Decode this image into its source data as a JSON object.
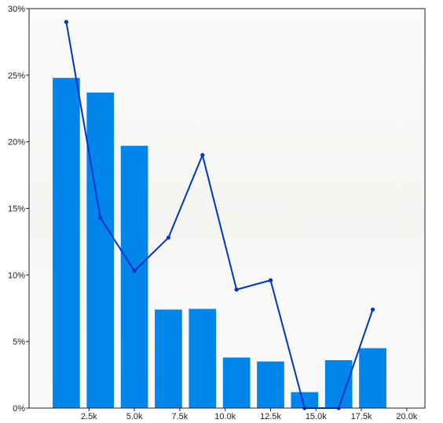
{
  "chart_data": {
    "type": "bar",
    "title": "",
    "xlabel": "",
    "ylabel": "",
    "x_tick_labels": [
      "2.5k",
      "5.0k",
      "7.5k",
      "10.0k",
      "12.5k",
      "15.0k",
      "17.5k",
      "20.0k"
    ],
    "x_tick_values": [
      2500,
      5000,
      7500,
      10000,
      12500,
      15000,
      17500,
      20000
    ],
    "xlim": [
      -800,
      21000
    ],
    "y_tick_labels": [
      "0%",
      "5%",
      "10%",
      "15%",
      "20%",
      "25%",
      "30%"
    ],
    "y_tick_values": [
      0,
      5,
      10,
      15,
      20,
      25,
      30
    ],
    "ylim": [
      0,
      30
    ],
    "grid": false,
    "legend": "none",
    "bin_centers": [
      1250,
      3125,
      5000,
      6875,
      8750,
      10625,
      12500,
      14375,
      16250,
      18125
    ],
    "bin_width_ratio": 0.8,
    "series": [
      {
        "type": "bar",
        "color": "#0085ea",
        "values": [
          24.8,
          23.7,
          19.7,
          7.4,
          7.45,
          3.8,
          3.5,
          1.2,
          3.6,
          4.5
        ]
      },
      {
        "type": "line",
        "color": "#0033c8",
        "values": [
          29.0,
          14.3,
          10.3,
          12.8,
          19.0,
          8.9,
          9.6,
          0,
          0,
          7.4
        ]
      }
    ]
  },
  "colors": {
    "background_top": "#f7f7f5",
    "background_bottom": "#fafafa",
    "axis": "#222222"
  }
}
